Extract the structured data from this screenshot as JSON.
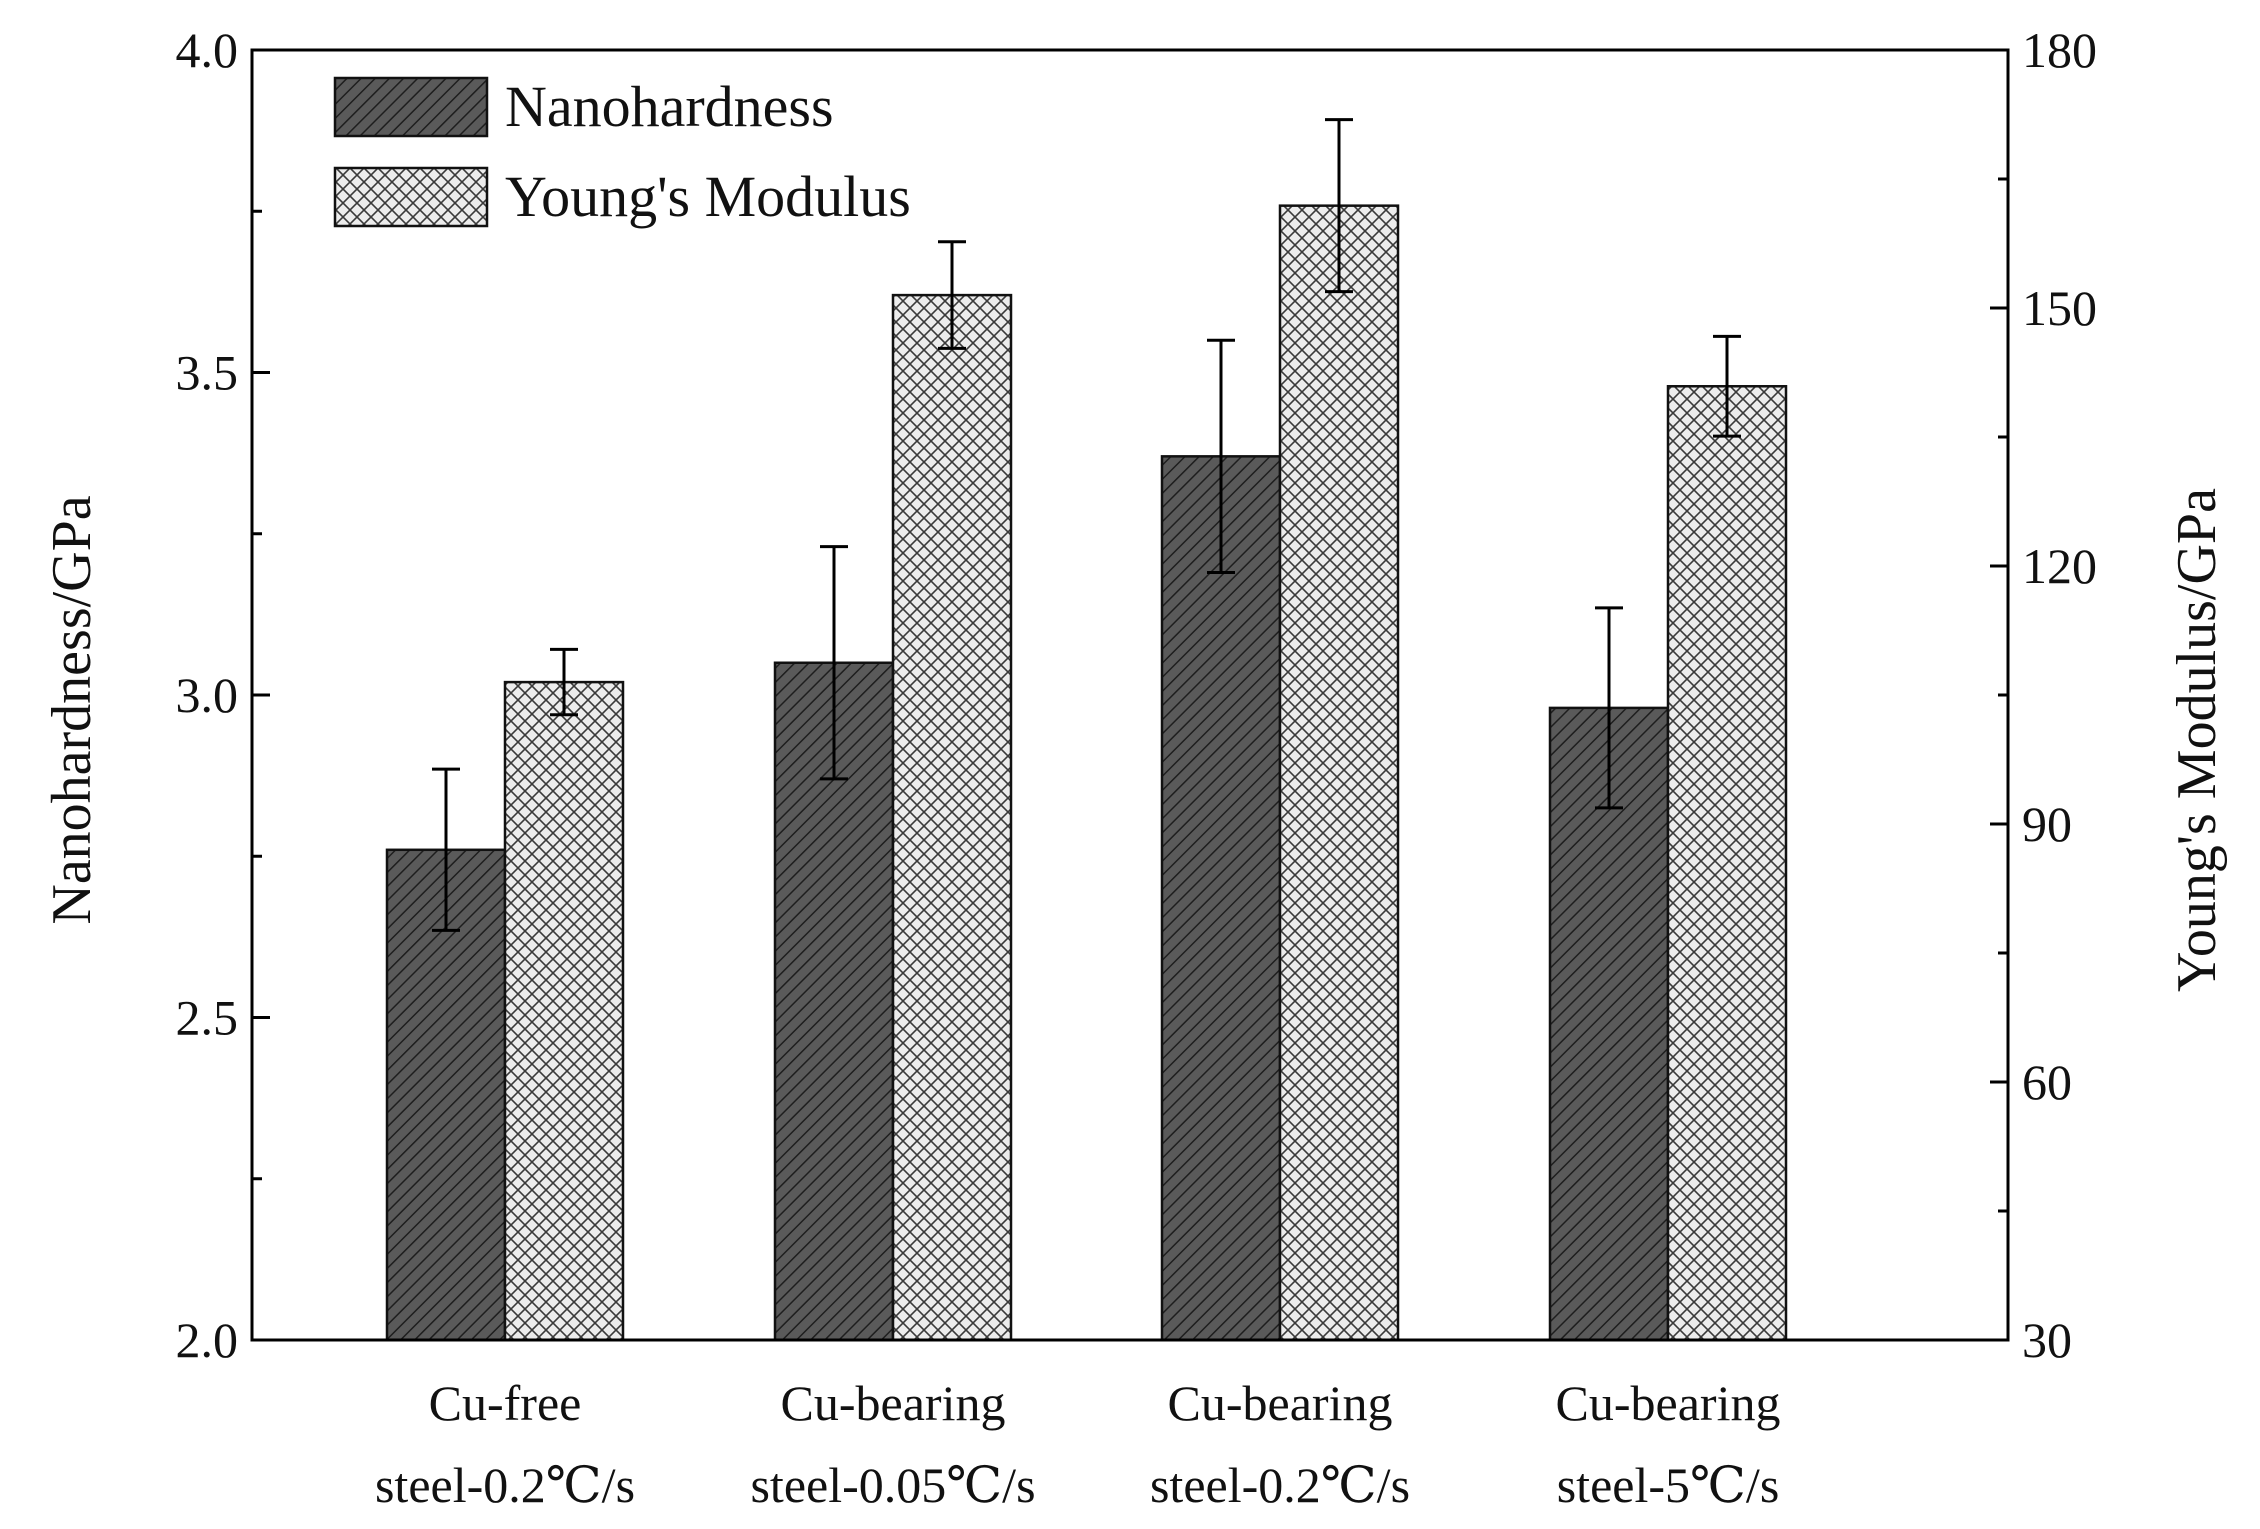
{
  "chart_data": {
    "type": "bar",
    "categories": [
      [
        "Cu-free",
        "steel-0.2℃/s"
      ],
      [
        "Cu-bearing",
        "steel-0.05℃/s"
      ],
      [
        "Cu-bearing",
        "steel-0.2℃/s"
      ],
      [
        "Cu-bearing",
        "steel-5℃/s"
      ]
    ],
    "y_left": {
      "label": "Nanohardness/GPa",
      "lim": [
        2.0,
        4.0
      ],
      "ticks": [
        "2.0",
        "2.5",
        "3.0",
        "3.5",
        "4.0"
      ],
      "minor_step": 0.25
    },
    "y_right": {
      "label": "Young's Modulus/GPa",
      "lim": [
        30,
        180
      ],
      "ticks": [
        "30",
        "60",
        "90",
        "120",
        "150",
        "180"
      ],
      "minor_step": 15
    },
    "series": [
      {
        "name": "Nanohardness",
        "axis": "left",
        "values": [
          2.76,
          3.05,
          3.37,
          2.98
        ],
        "errors": [
          0.125,
          0.18,
          0.18,
          0.155
        ],
        "color": "#555555",
        "pattern": "diagonal-hatch"
      },
      {
        "name": "Young's Modulus",
        "axis": "right",
        "values": [
          106.5,
          151.5,
          161.9,
          140.9
        ],
        "errors": [
          3.8,
          6.2,
          10.0,
          5.8
        ],
        "color": "#e6e6e6",
        "pattern": "cross-hatch"
      }
    ],
    "legend_position": "top-left",
    "grid": false
  }
}
